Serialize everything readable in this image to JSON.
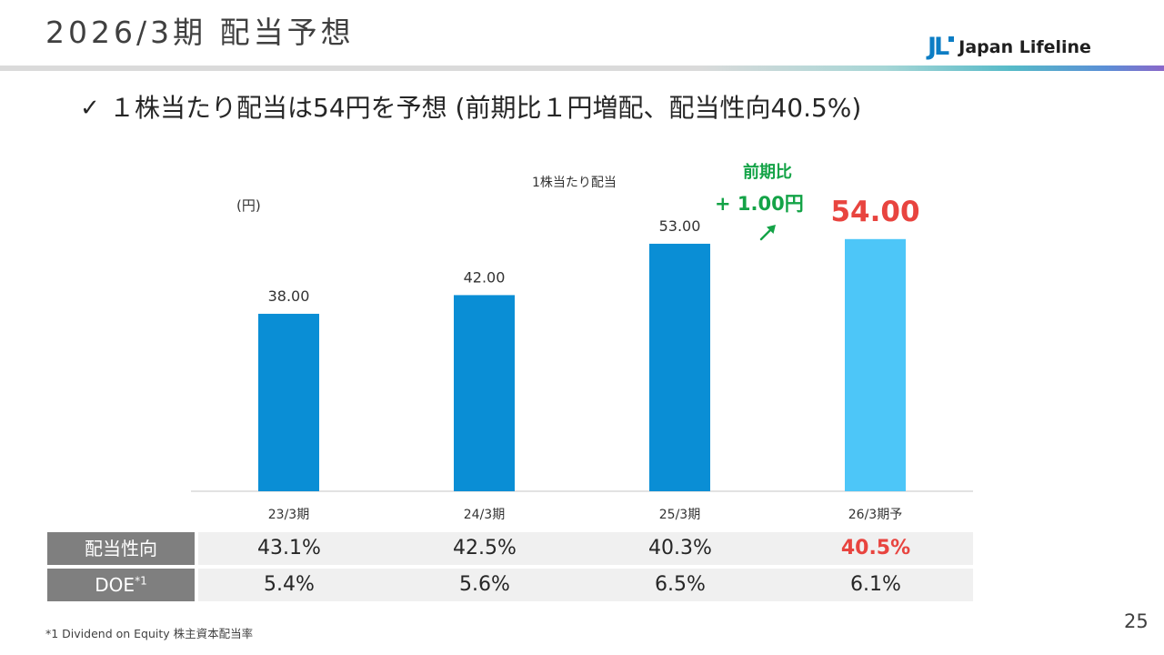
{
  "header": {
    "title": "2026/3期 配当予想",
    "logo": {
      "mark": "JL",
      "name": "Japan Lifeline"
    }
  },
  "bullet": {
    "icon": "check-icon",
    "text": "１株当たり配当は54円を予想 (前期比１円増配、配当性向40.5%)"
  },
  "chart_data": {
    "type": "bar",
    "title": "1株当たり配当",
    "ylabel": "(円)",
    "categories": [
      "23/3期",
      "24/3期",
      "25/3期",
      "26/3期予"
    ],
    "values": [
      38.0,
      42.0,
      53.0,
      54.0
    ],
    "value_labels": [
      "38.00",
      "42.00",
      "53.00",
      "54.00"
    ],
    "ylim": [
      0,
      60
    ],
    "grid": false,
    "bar_colors": [
      "#0A8ED5",
      "#0A8ED5",
      "#0A8ED5",
      "#4DC6F8"
    ],
    "highlight_value_color": "#E8443F",
    "annotation": {
      "line1": "前期比",
      "line2": "+ 1.00円",
      "icon": "arrow-up-right-icon",
      "color": "#14A347"
    }
  },
  "table": {
    "rows": [
      {
        "label": "配当性向",
        "values": [
          "43.1%",
          "42.5%",
          "40.3%",
          "40.5%"
        ]
      },
      {
        "label": "DOE",
        "sup": "*1",
        "values": [
          "5.4%",
          "5.6%",
          "6.5%",
          "6.1%"
        ]
      }
    ]
  },
  "footnote": "*1 Dividend on Equity 株主資本配当率",
  "page_number": "25",
  "colors": {
    "title_text": "#404040",
    "logo_blue": "#0C7DC4",
    "table_header_bg": "#7F7F7F",
    "table_row_bg": "#F0F0F0",
    "highlight_red": "#E8443F"
  }
}
